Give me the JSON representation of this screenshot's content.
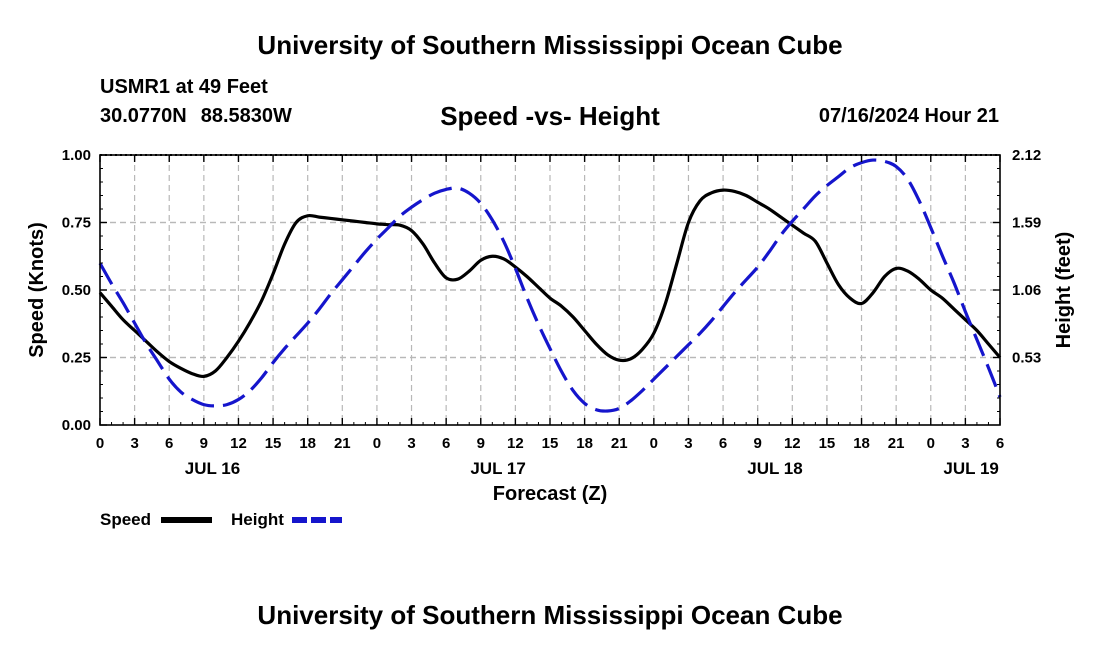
{
  "header": {
    "title": "University of Southern Mississippi Ocean Cube",
    "station": "USMR1 at 49 Feet",
    "latitude": "30.0770N",
    "longitude": "88.5830W",
    "subtitle": "Speed -vs- Height",
    "datetime": "07/16/2024 Hour 21"
  },
  "footer": {
    "title": "University of Southern Mississippi Ocean Cube"
  },
  "colors": {
    "speed": "#000000",
    "height": "#1515cc",
    "grid": "#b8b8b8"
  },
  "chart_data": {
    "type": "line",
    "title": "Speed -vs- Height",
    "xlabel": "Forecast (Z)",
    "ylabel": "Speed (Knots)",
    "y2label": "Height (feet)",
    "x_unit": "hours from JUL 16 00Z",
    "xlim": [
      0,
      78
    ],
    "ylim": [
      0,
      1.0
    ],
    "y2lim": [
      0,
      2.12
    ],
    "x_ticks": [
      0,
      3,
      6,
      9,
      12,
      15,
      18,
      21,
      24,
      27,
      30,
      33,
      36,
      39,
      42,
      45,
      48,
      51,
      54,
      57,
      60,
      63,
      66,
      69,
      72,
      75,
      78
    ],
    "x_tick_labels": [
      "0",
      "3",
      "6",
      "9",
      "12",
      "15",
      "18",
      "21",
      "0",
      "3",
      "6",
      "9",
      "12",
      "15",
      "18",
      "21",
      "0",
      "3",
      "6",
      "9",
      "12",
      "15",
      "18",
      "21",
      "0",
      "3",
      "6"
    ],
    "day_labels": [
      {
        "label": "JUL 16",
        "x": 9.75
      },
      {
        "label": "JUL 17",
        "x": 34.5
      },
      {
        "label": "JUL 18",
        "x": 58.5
      },
      {
        "label": "JUL 19",
        "x": 75.5
      }
    ],
    "y_ticks": [
      0.0,
      0.25,
      0.5,
      0.75,
      1.0
    ],
    "y_tick_labels": [
      "0.00",
      "0.25",
      "0.50",
      "0.75",
      "1.00"
    ],
    "y2_ticks": [
      0.53,
      1.06,
      1.59,
      2.12
    ],
    "y2_tick_labels": [
      "0.53",
      "1.06",
      "1.59",
      "2.12"
    ],
    "legend": {
      "position": "bottom-left",
      "entries": [
        "Speed",
        "Height"
      ]
    },
    "series": [
      {
        "name": "Speed",
        "axis": "left",
        "style": "solid",
        "x": [
          0,
          1,
          2,
          3,
          4,
          5,
          6,
          7,
          8,
          9,
          10,
          11,
          12,
          13,
          14,
          15,
          16,
          17,
          18,
          19,
          20,
          21,
          22,
          23,
          24,
          25,
          26,
          27,
          28,
          29,
          30,
          31,
          32,
          33,
          34,
          35,
          36,
          37,
          38,
          39,
          40,
          41,
          42,
          43,
          44,
          45,
          46,
          47,
          48,
          49,
          50,
          51,
          52,
          53,
          54,
          55,
          56,
          57,
          58,
          59,
          60,
          61,
          62,
          63,
          64,
          65,
          66,
          67,
          68,
          69,
          70,
          71,
          72,
          73,
          74,
          75,
          76,
          77,
          78
        ],
        "values": [
          0.49,
          0.44,
          0.39,
          0.35,
          0.31,
          0.27,
          0.235,
          0.21,
          0.19,
          0.18,
          0.2,
          0.25,
          0.31,
          0.38,
          0.46,
          0.56,
          0.67,
          0.75,
          0.775,
          0.77,
          0.765,
          0.76,
          0.755,
          0.75,
          0.745,
          0.742,
          0.74,
          0.72,
          0.67,
          0.6,
          0.545,
          0.54,
          0.57,
          0.61,
          0.625,
          0.615,
          0.585,
          0.55,
          0.51,
          0.47,
          0.44,
          0.4,
          0.35,
          0.3,
          0.26,
          0.24,
          0.245,
          0.28,
          0.34,
          0.45,
          0.6,
          0.75,
          0.83,
          0.86,
          0.87,
          0.865,
          0.85,
          0.825,
          0.8,
          0.77,
          0.74,
          0.71,
          0.68,
          0.6,
          0.52,
          0.47,
          0.45,
          0.49,
          0.55,
          0.58,
          0.57,
          0.54,
          0.5,
          0.47,
          0.43,
          0.39,
          0.35,
          0.3,
          0.25
        ]
      },
      {
        "name": "Height",
        "axis": "right",
        "style": "dashed",
        "x": [
          0,
          1,
          2,
          3,
          4,
          5,
          6,
          7,
          8,
          9,
          10,
          11,
          12,
          13,
          14,
          15,
          16,
          17,
          18,
          19,
          20,
          21,
          22,
          23,
          24,
          25,
          26,
          27,
          28,
          29,
          30,
          31,
          32,
          33,
          34,
          35,
          36,
          37,
          38,
          39,
          40,
          41,
          42,
          43,
          44,
          45,
          46,
          47,
          48,
          49,
          50,
          51,
          52,
          53,
          54,
          55,
          56,
          57,
          58,
          59,
          60,
          61,
          62,
          63,
          64,
          65,
          66,
          67,
          68,
          69,
          70,
          71,
          72,
          73,
          74,
          75,
          76,
          77,
          78
        ],
        "values": [
          1.27,
          1.11,
          0.96,
          0.8,
          0.64,
          0.5,
          0.36,
          0.26,
          0.2,
          0.16,
          0.15,
          0.16,
          0.2,
          0.27,
          0.37,
          0.49,
          0.6,
          0.7,
          0.8,
          0.91,
          1.03,
          1.14,
          1.25,
          1.36,
          1.46,
          1.55,
          1.64,
          1.71,
          1.77,
          1.82,
          1.85,
          1.86,
          1.82,
          1.74,
          1.61,
          1.44,
          1.23,
          1.0,
          0.79,
          0.6,
          0.42,
          0.27,
          0.17,
          0.12,
          0.11,
          0.13,
          0.19,
          0.27,
          0.36,
          0.45,
          0.54,
          0.63,
          0.72,
          0.82,
          0.93,
          1.04,
          1.14,
          1.24,
          1.36,
          1.49,
          1.6,
          1.7,
          1.8,
          1.88,
          1.95,
          2.02,
          2.06,
          2.08,
          2.07,
          2.03,
          1.93,
          1.76,
          1.55,
          1.33,
          1.12,
          0.89,
          0.67,
          0.45,
          0.22
        ]
      }
    ]
  }
}
